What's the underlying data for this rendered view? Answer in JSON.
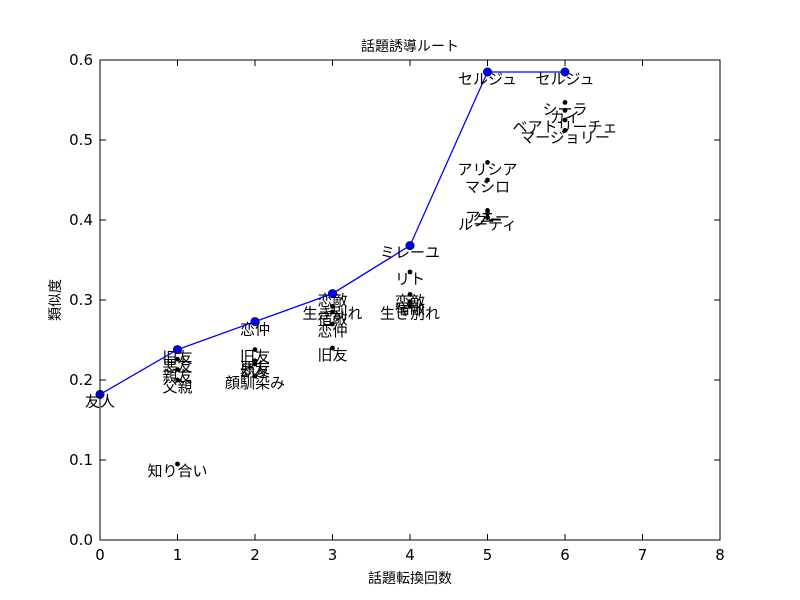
{
  "chart_data": {
    "type": "scatter",
    "title": "話題誘導ルート",
    "xlabel": "話題転換回数",
    "ylabel": "類似度",
    "xlim": [
      0,
      8
    ],
    "ylim": [
      0.0,
      0.6
    ],
    "xticks": [
      "0",
      "1",
      "2",
      "3",
      "4",
      "5",
      "6",
      "7",
      "8"
    ],
    "yticks": [
      "0.0",
      "0.1",
      "0.2",
      "0.3",
      "0.4",
      "0.5",
      "0.6"
    ],
    "grid": false,
    "colors": {
      "route": "#0000ff",
      "points": "#000000"
    },
    "route": {
      "x": [
        0,
        1,
        2,
        3,
        4,
        5,
        6
      ],
      "y": [
        0.182,
        0.238,
        0.273,
        0.308,
        0.368,
        0.585,
        0.585
      ],
      "labels": [
        "友人",
        "",
        "",
        "",
        "ミレーユ",
        "セルジュ",
        "セルジュ"
      ]
    },
    "points": [
      {
        "x": 1,
        "y": 0.095,
        "label": "知り合い"
      },
      {
        "x": 1,
        "y": 0.237,
        "label": "旧友"
      },
      {
        "x": 1,
        "y": 0.226,
        "label": "悪友"
      },
      {
        "x": 1,
        "y": 0.213,
        "label": "親友"
      },
      {
        "x": 1,
        "y": 0.2,
        "label": "父親"
      },
      {
        "x": 2,
        "y": 0.238,
        "label": "旧友"
      },
      {
        "x": 2,
        "y": 0.224,
        "label": "悪友"
      },
      {
        "x": 2,
        "y": 0.22,
        "label": "幼友"
      },
      {
        "x": 2,
        "y": 0.205,
        "label": "顔馴染み"
      },
      {
        "x": 2,
        "y": 0.272,
        "label": "恋仲"
      },
      {
        "x": 3,
        "y": 0.24,
        "label": "旧友"
      },
      {
        "x": 3,
        "y": 0.27,
        "label": "恋仲"
      },
      {
        "x": 3,
        "y": 0.285,
        "label": "宿敵"
      },
      {
        "x": 3,
        "y": 0.292,
        "label": "生き別れ"
      },
      {
        "x": 3,
        "y": 0.308,
        "label": "恋敵"
      },
      {
        "x": 4,
        "y": 0.335,
        "label": "リト"
      },
      {
        "x": 4,
        "y": 0.307,
        "label": "恋敵"
      },
      {
        "x": 4,
        "y": 0.298,
        "label": "宿敵"
      },
      {
        "x": 4,
        "y": 0.292,
        "label": "生き別れ"
      },
      {
        "x": 5,
        "y": 0.472,
        "label": "アリシア"
      },
      {
        "x": 5,
        "y": 0.45,
        "label": "マシロ"
      },
      {
        "x": 5,
        "y": 0.412,
        "label": "アニー"
      },
      {
        "x": 5,
        "y": 0.408,
        "label": "クー"
      },
      {
        "x": 5,
        "y": 0.403,
        "label": "ルーティ"
      },
      {
        "x": 6,
        "y": 0.547,
        "label": "シーラ"
      },
      {
        "x": 6,
        "y": 0.537,
        "label": "カイ"
      },
      {
        "x": 6,
        "y": 0.525,
        "label": "ベアトリーチェ"
      },
      {
        "x": 6,
        "y": 0.512,
        "label": "マージョリー"
      }
    ]
  }
}
